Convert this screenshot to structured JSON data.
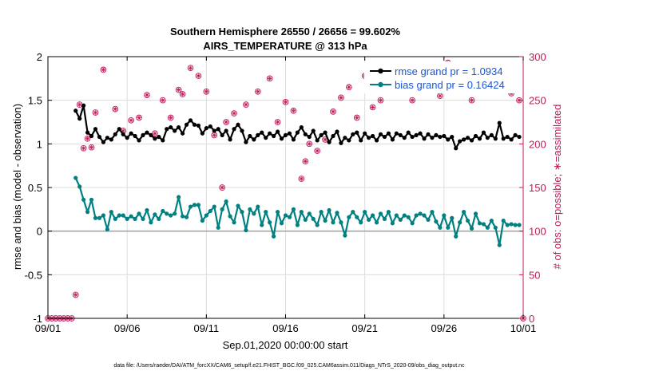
{
  "chart_data": {
    "type": "line",
    "title": "Southern Hemisphere 26550 / 26656 = 99.602%",
    "subtitle": "AIRS_TEMPERATURE @ 313 hPa",
    "xlabel": "Sep.01,2020 00:00:00 start",
    "ylabel": "rmse and bias (model - observation)",
    "ylabel_right": "# of obs: o=possible; ∗=assimilated",
    "footnote": "data file: /Users/raeder/DAI/ATM_forcXX/CAM6_setup/f.e21.FHIST_BGC.f09_025.CAM6assim.011/Diags_NTrS_2020-09/obs_diag_output.nc",
    "xlim": [
      0,
      30
    ],
    "ylim": [
      -1,
      2
    ],
    "ylim_right": [
      0,
      300
    ],
    "x_ticks": [
      0,
      5,
      10,
      15,
      20,
      25,
      30
    ],
    "x_tick_labels": [
      "09/01",
      "09/06",
      "09/11",
      "09/16",
      "09/21",
      "09/26",
      "10/01"
    ],
    "y_ticks": [
      -1,
      -0.5,
      0,
      0.5,
      1,
      1.5,
      2
    ],
    "y_tick_labels": [
      "-1",
      "-0.5",
      "0",
      "0.5",
      "1",
      "1.5",
      "2"
    ],
    "y_right_ticks": [
      0,
      50,
      100,
      150,
      200,
      250,
      300
    ],
    "y_right_tick_labels": [
      "0",
      "50",
      "100",
      "150",
      "200",
      "250",
      "300"
    ],
    "legend": [
      {
        "label": "rmse grand pr = 1.0934",
        "color": "#000000"
      },
      {
        "label": "bias grand pr = 0.16424",
        "color": "#008080"
      }
    ],
    "colors": {
      "rmse": "#000000",
      "bias": "#008080",
      "obs": "#c2185b",
      "zero_line": "#a6a6a6"
    },
    "rmse": [
      [
        1.75,
        1.38
      ],
      [
        2.0,
        1.29
      ],
      [
        2.25,
        1.44
      ],
      [
        2.5,
        1.13
      ],
      [
        2.75,
        1.09
      ],
      [
        3.0,
        1.17
      ],
      [
        3.25,
        1.08
      ],
      [
        3.5,
        1.02
      ],
      [
        3.75,
        1.07
      ],
      [
        4.0,
        1.05
      ],
      [
        4.25,
        1.11
      ],
      [
        4.5,
        1.17
      ],
      [
        4.75,
        1.11
      ],
      [
        5.0,
        1.07
      ],
      [
        5.25,
        1.12
      ],
      [
        5.5,
        1.09
      ],
      [
        5.75,
        1.04
      ],
      [
        6.0,
        1.1
      ],
      [
        6.25,
        1.13
      ],
      [
        6.5,
        1.1
      ],
      [
        6.75,
        1.06
      ],
      [
        7.0,
        1.08
      ],
      [
        7.25,
        1.04
      ],
      [
        7.5,
        1.17
      ],
      [
        7.75,
        1.19
      ],
      [
        8.0,
        1.15
      ],
      [
        8.25,
        1.19
      ],
      [
        8.5,
        1.12
      ],
      [
        8.75,
        1.22
      ],
      [
        9.0,
        1.27
      ],
      [
        9.25,
        1.22
      ],
      [
        9.5,
        1.21
      ],
      [
        9.75,
        1.12
      ],
      [
        10.0,
        1.18
      ],
      [
        10.25,
        1.2
      ],
      [
        10.5,
        1.15
      ],
      [
        10.75,
        1.17
      ],
      [
        11.0,
        1.1
      ],
      [
        11.25,
        1.15
      ],
      [
        11.5,
        1.05
      ],
      [
        11.75,
        1.17
      ],
      [
        12.0,
        1.22
      ],
      [
        12.25,
        1.15
      ],
      [
        12.5,
        1.02
      ],
      [
        12.75,
        1.09
      ],
      [
        13.0,
        1.05
      ],
      [
        13.25,
        1.1
      ],
      [
        13.5,
        1.13
      ],
      [
        13.75,
        1.07
      ],
      [
        14.0,
        1.12
      ],
      [
        14.25,
        1.09
      ],
      [
        14.5,
        1.14
      ],
      [
        14.75,
        1.06
      ],
      [
        15.0,
        1.1
      ],
      [
        15.25,
        1.12
      ],
      [
        15.5,
        1.05
      ],
      [
        15.75,
        1.13
      ],
      [
        16.0,
        1.19
      ],
      [
        16.25,
        1.11
      ],
      [
        16.5,
        1.08
      ],
      [
        16.75,
        1.15
      ],
      [
        17.0,
        1.04
      ],
      [
        17.25,
        1.1
      ],
      [
        17.5,
        1.13
      ],
      [
        17.75,
        1.02
      ],
      [
        18.0,
        1.09
      ],
      [
        18.25,
        1.14
      ],
      [
        18.5,
        1.01
      ],
      [
        18.75,
        1.07
      ],
      [
        19.0,
        1.04
      ],
      [
        19.25,
        1.11
      ],
      [
        19.5,
        1.13
      ],
      [
        19.75,
        1.04
      ],
      [
        20.0,
        1.12
      ],
      [
        20.25,
        1.07
      ],
      [
        20.5,
        1.09
      ],
      [
        20.75,
        1.04
      ],
      [
        21.0,
        1.11
      ],
      [
        21.25,
        1.08
      ],
      [
        21.5,
        1.12
      ],
      [
        21.75,
        1.05
      ],
      [
        22.0,
        1.12
      ],
      [
        22.25,
        1.1
      ],
      [
        22.5,
        1.07
      ],
      [
        22.75,
        1.13
      ],
      [
        23.0,
        1.08
      ],
      [
        23.25,
        1.1
      ],
      [
        23.5,
        1.12
      ],
      [
        23.75,
        1.06
      ],
      [
        24.0,
        1.11
      ],
      [
        24.25,
        1.07
      ],
      [
        24.5,
        1.1
      ],
      [
        24.75,
        1.08
      ],
      [
        25.0,
        1.09
      ],
      [
        25.25,
        1.05
      ],
      [
        25.5,
        1.08
      ],
      [
        25.75,
        0.95
      ],
      [
        26.0,
        1.03
      ],
      [
        26.25,
        1.05
      ],
      [
        26.5,
        1.07
      ],
      [
        26.75,
        1.04
      ],
      [
        27.0,
        1.09
      ],
      [
        27.25,
        1.06
      ],
      [
        27.5,
        1.13
      ],
      [
        27.75,
        1.07
      ],
      [
        28.0,
        1.1
      ],
      [
        28.25,
        1.06
      ],
      [
        28.5,
        1.24
      ],
      [
        28.75,
        1.06
      ],
      [
        29.0,
        1.08
      ],
      [
        29.25,
        1.05
      ],
      [
        29.5,
        1.1
      ],
      [
        29.75,
        1.08
      ]
    ],
    "bias": [
      [
        1.75,
        0.61
      ],
      [
        2.0,
        0.51
      ],
      [
        2.25,
        0.36
      ],
      [
        2.5,
        0.22
      ],
      [
        2.75,
        0.36
      ],
      [
        3.0,
        0.15
      ],
      [
        3.25,
        0.15
      ],
      [
        3.5,
        0.18
      ],
      [
        3.75,
        0.02
      ],
      [
        4.0,
        0.22
      ],
      [
        4.25,
        0.14
      ],
      [
        4.5,
        0.18
      ],
      [
        4.75,
        0.18
      ],
      [
        5.0,
        0.14
      ],
      [
        5.25,
        0.17
      ],
      [
        5.5,
        0.14
      ],
      [
        5.75,
        0.2
      ],
      [
        6.0,
        0.14
      ],
      [
        6.25,
        0.24
      ],
      [
        6.5,
        0.1
      ],
      [
        6.75,
        0.19
      ],
      [
        7.0,
        0.14
      ],
      [
        7.25,
        0.23
      ],
      [
        7.5,
        0.2
      ],
      [
        7.75,
        0.18
      ],
      [
        8.0,
        0.2
      ],
      [
        8.25,
        0.39
      ],
      [
        8.5,
        0.17
      ],
      [
        8.75,
        0.16
      ],
      [
        9.0,
        0.28
      ],
      [
        9.25,
        0.3
      ],
      [
        9.5,
        0.3
      ],
      [
        9.75,
        0.12
      ],
      [
        10.0,
        0.18
      ],
      [
        10.25,
        0.23
      ],
      [
        10.5,
        0.28
      ],
      [
        10.75,
        0.04
      ],
      [
        11.0,
        0.25
      ],
      [
        11.25,
        0.34
      ],
      [
        11.5,
        0.17
      ],
      [
        11.75,
        0.1
      ],
      [
        12.0,
        0.29
      ],
      [
        12.25,
        0.22
      ],
      [
        12.5,
        0.01
      ],
      [
        12.75,
        0.25
      ],
      [
        13.0,
        0.2
      ],
      [
        13.25,
        0.28
      ],
      [
        13.5,
        0.07
      ],
      [
        13.75,
        0.22
      ],
      [
        14.0,
        0.1
      ],
      [
        14.25,
        -0.06
      ],
      [
        14.5,
        0.22
      ],
      [
        14.75,
        0.09
      ],
      [
        15.0,
        0.18
      ],
      [
        15.25,
        0.16
      ],
      [
        15.5,
        0.25
      ],
      [
        15.75,
        0.07
      ],
      [
        16.0,
        0.22
      ],
      [
        16.25,
        0.13
      ],
      [
        16.5,
        0.2
      ],
      [
        16.75,
        0.14
      ],
      [
        17.0,
        0.07
      ],
      [
        17.25,
        0.22
      ],
      [
        17.5,
        0.12
      ],
      [
        17.75,
        0.24
      ],
      [
        18.0,
        0.1
      ],
      [
        18.25,
        0.21
      ],
      [
        18.5,
        0.1
      ],
      [
        18.75,
        -0.05
      ],
      [
        19.0,
        0.16
      ],
      [
        19.25,
        0.22
      ],
      [
        19.5,
        0.16
      ],
      [
        19.75,
        0.1
      ],
      [
        20.0,
        0.22
      ],
      [
        20.25,
        0.13
      ],
      [
        20.5,
        0.18
      ],
      [
        20.75,
        0.1
      ],
      [
        21.0,
        0.2
      ],
      [
        21.25,
        0.14
      ],
      [
        21.5,
        0.22
      ],
      [
        21.75,
        0.09
      ],
      [
        22.0,
        0.18
      ],
      [
        22.25,
        0.13
      ],
      [
        22.5,
        0.18
      ],
      [
        22.75,
        0.16
      ],
      [
        23.0,
        0.09
      ],
      [
        23.25,
        0.18
      ],
      [
        23.5,
        0.2
      ],
      [
        23.75,
        0.18
      ],
      [
        24.0,
        0.13
      ],
      [
        24.25,
        0.22
      ],
      [
        24.5,
        0.11
      ],
      [
        24.75,
        0.04
      ],
      [
        25.0,
        0.18
      ],
      [
        25.25,
        0.04
      ],
      [
        25.5,
        0.15
      ],
      [
        25.75,
        -0.06
      ],
      [
        26.0,
        0.1
      ],
      [
        26.25,
        0.22
      ],
      [
        26.5,
        0.12
      ],
      [
        26.75,
        0.03
      ],
      [
        27.0,
        0.2
      ],
      [
        27.25,
        0.09
      ],
      [
        27.5,
        0.08
      ],
      [
        27.75,
        0.04
      ],
      [
        28.0,
        0.12
      ],
      [
        28.25,
        0.04
      ],
      [
        28.5,
        -0.16
      ],
      [
        28.75,
        0.12
      ],
      [
        29.0,
        0.07
      ],
      [
        29.25,
        0.08
      ],
      [
        29.5,
        0.07
      ],
      [
        29.75,
        0.07
      ]
    ],
    "obs_count": [
      [
        0.0,
        0
      ],
      [
        0.25,
        0
      ],
      [
        0.5,
        0
      ],
      [
        0.75,
        0
      ],
      [
        1.0,
        0
      ],
      [
        1.25,
        0
      ],
      [
        1.5,
        0
      ],
      [
        1.75,
        27
      ],
      [
        2.0,
        245
      ],
      [
        2.25,
        195
      ],
      [
        2.5,
        206
      ],
      [
        2.75,
        196
      ],
      [
        3.0,
        236
      ],
      [
        3.5,
        285
      ],
      [
        4.25,
        240
      ],
      [
        4.75,
        215
      ],
      [
        5.25,
        227
      ],
      [
        5.75,
        230
      ],
      [
        6.25,
        256
      ],
      [
        6.75,
        212
      ],
      [
        7.25,
        250
      ],
      [
        7.75,
        230
      ],
      [
        8.25,
        262
      ],
      [
        8.5,
        257
      ],
      [
        9.0,
        287
      ],
      [
        9.5,
        278
      ],
      [
        10.0,
        260
      ],
      [
        10.5,
        210
      ],
      [
        11.0,
        150
      ],
      [
        11.25,
        225
      ],
      [
        11.75,
        235
      ],
      [
        12.5,
        245
      ],
      [
        13.25,
        260
      ],
      [
        14.0,
        275
      ],
      [
        14.5,
        225
      ],
      [
        15.0,
        248
      ],
      [
        15.5,
        238
      ],
      [
        16.0,
        160
      ],
      [
        16.25,
        180
      ],
      [
        16.5,
        200
      ],
      [
        17.0,
        192
      ],
      [
        17.5,
        205
      ],
      [
        18.0,
        237
      ],
      [
        18.5,
        253
      ],
      [
        19.0,
        265
      ],
      [
        19.5,
        230
      ],
      [
        20.0,
        278
      ],
      [
        20.5,
        242
      ],
      [
        21.0,
        250
      ],
      [
        21.5,
        262
      ],
      [
        22.0,
        278
      ],
      [
        22.5,
        265
      ],
      [
        23.0,
        250
      ],
      [
        23.25,
        285
      ],
      [
        23.75,
        265
      ],
      [
        24.25,
        275
      ],
      [
        24.75,
        255
      ],
      [
        25.25,
        293
      ],
      [
        25.75,
        268
      ],
      [
        26.25,
        285
      ],
      [
        26.75,
        250
      ],
      [
        27.25,
        270
      ],
      [
        27.75,
        280
      ],
      [
        28.25,
        285
      ],
      [
        28.75,
        265
      ],
      [
        29.25,
        258
      ],
      [
        29.75,
        250
      ],
      [
        30.0,
        0
      ]
    ]
  }
}
